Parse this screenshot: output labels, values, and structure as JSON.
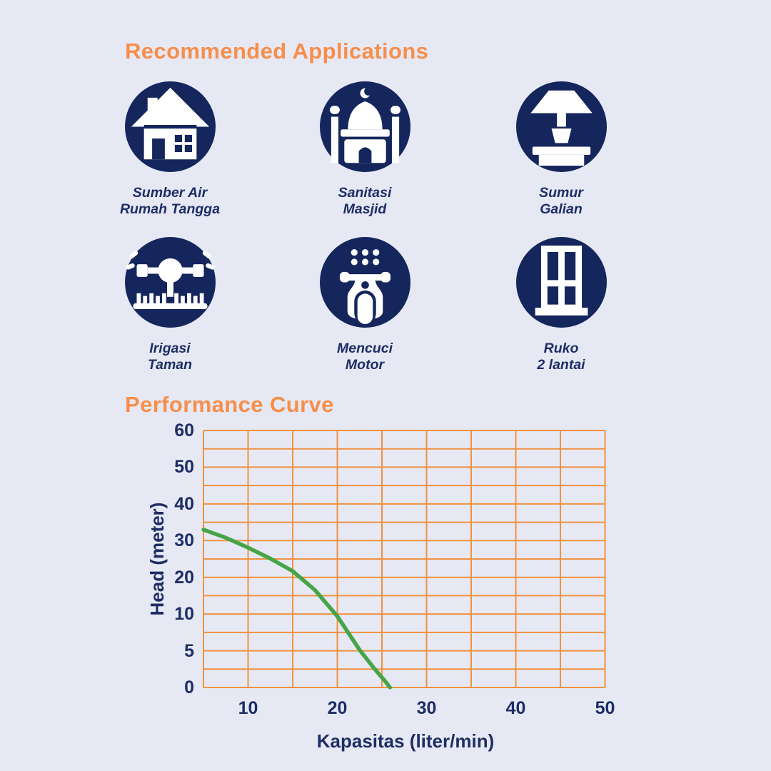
{
  "colors": {
    "background": "#e6e9f4",
    "heading_orange": "#f78e4a",
    "grid_orange": "#f29140",
    "curve_green": "#46a547",
    "icon_navy": "#14265c",
    "text_navy": "#1e2d64",
    "icon_white": "#ffffff"
  },
  "applications": {
    "title": "Recommended Applications",
    "items": [
      {
        "icon": "house-icon",
        "line1": "Sumber Air",
        "line2": "Rumah Tangga"
      },
      {
        "icon": "mosque-icon",
        "line1": "Sanitasi",
        "line2": "Masjid"
      },
      {
        "icon": "water-well-icon",
        "line1": "Sumur",
        "line2": "Galian"
      },
      {
        "icon": "sprinkler-icon",
        "line1": "Irigasi",
        "line2": "Taman"
      },
      {
        "icon": "scooter-icon",
        "line1": "Mencuci",
        "line2": "Motor"
      },
      {
        "icon": "window-icon",
        "line1": "Ruko",
        "line2": "2 lantai"
      }
    ]
  },
  "performance": {
    "title": "Performance Curve"
  },
  "chart_data": {
    "type": "line",
    "title": "Performance Curve",
    "xlabel": "Kapasitas (liter/min)",
    "ylabel": "Head (meter)",
    "grid": true,
    "legend": false,
    "x_axis": {
      "min": 5,
      "max": 50,
      "gridlines": 10,
      "tick_values": [
        10,
        20,
        30,
        40,
        50
      ],
      "tick_lines": [
        1,
        3,
        5,
        7,
        9
      ]
    },
    "y_axis": {
      "gridlines": 15,
      "ticks": [
        {
          "value": 60,
          "line": 0
        },
        {
          "value": 50,
          "line": 2
        },
        {
          "value": 40,
          "line": 4
        },
        {
          "value": 30,
          "line": 6
        },
        {
          "value": 20,
          "line": 8
        },
        {
          "value": 10,
          "line": 10
        },
        {
          "value": 5,
          "line": 12
        },
        {
          "value": 0,
          "line": 14
        }
      ]
    },
    "series": [
      {
        "name": "head-vs-capacity",
        "points": [
          [
            5,
            33
          ],
          [
            7.5,
            30.8
          ],
          [
            10,
            28.1
          ],
          [
            12.5,
            25.1
          ],
          [
            15,
            21.7
          ],
          [
            17.5,
            16.5
          ],
          [
            20,
            9.7
          ],
          [
            22.5,
            5.1
          ],
          [
            24.2,
            2.5
          ],
          [
            25.4,
            0.8
          ],
          [
            25.9,
            0
          ]
        ]
      }
    ]
  }
}
